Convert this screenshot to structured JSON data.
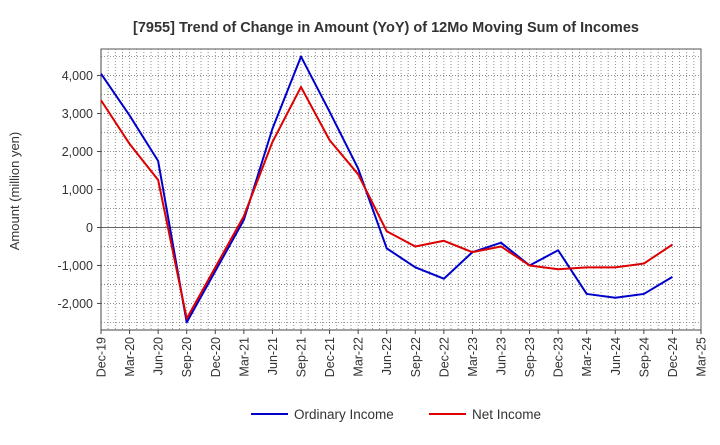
{
  "chart_data": {
    "type": "line",
    "title": "[7955]  Trend of Change in Amount (YoY) of 12Mo Moving Sum of Incomes",
    "xlabel": "",
    "ylabel": "Amount (million yen)",
    "ylim": [
      -2700,
      4700
    ],
    "yticks": [
      -2000,
      -1000,
      0,
      1000,
      2000,
      3000,
      4000
    ],
    "ytick_labels": [
      "-2,000",
      "-1,000",
      "0",
      "1,000",
      "2,000",
      "3,000",
      "4,000"
    ],
    "grid": true,
    "legend_position": "bottom-center",
    "categories": [
      "Dec-19",
      "Mar-20",
      "Jun-20",
      "Sep-20",
      "Dec-20",
      "Mar-21",
      "Jun-21",
      "Sep-21",
      "Dec-21",
      "Mar-22",
      "Jun-22",
      "Sep-22",
      "Dec-22",
      "Mar-23",
      "Jun-23",
      "Sep-23",
      "Dec-23",
      "Mar-24",
      "Jun-24",
      "Sep-24",
      "Dec-24",
      "Mar-25"
    ],
    "series": [
      {
        "name": "Ordinary Income",
        "color": "#0000cc",
        "values": [
          4050,
          2950,
          1750,
          -2500,
          -1150,
          200,
          2600,
          4500,
          3050,
          1550,
          -550,
          -1050,
          -1350,
          -650,
          -400,
          -1000,
          -600,
          -1750,
          -1850,
          -1750,
          -1300,
          null
        ]
      },
      {
        "name": "Net Income",
        "color": "#dd0000",
        "values": [
          3350,
          2200,
          1250,
          -2400,
          -1050,
          300,
          2250,
          3700,
          2300,
          1400,
          -100,
          -500,
          -350,
          -650,
          -500,
          -1000,
          -1100,
          -1050,
          -1050,
          -950,
          -450,
          null
        ]
      }
    ]
  }
}
